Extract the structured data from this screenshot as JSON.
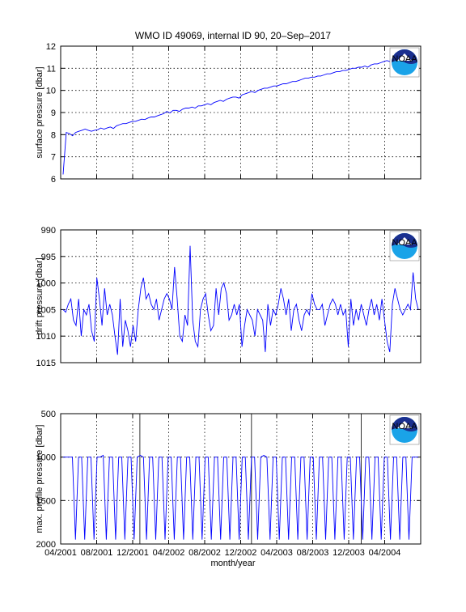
{
  "figure": {
    "title": "WMO ID 49069, internal ID 90, 20–Sep–2017",
    "xlabel": "month/year",
    "logo_text": "NOAA"
  },
  "colors": {
    "line": "#0000ff",
    "axes": "#000000",
    "grid": "#000000",
    "logo_blue": "#1a2f8f",
    "logo_cyan": "#1aa3e8"
  },
  "chart_data": [
    {
      "type": "line",
      "ylabel": "surface pressure [dbar]",
      "ylim": [
        6,
        12
      ],
      "yticks": [
        6,
        7,
        8,
        9,
        10,
        11,
        12
      ],
      "y_reversed": false,
      "grid": true,
      "x_tick_labels": [],
      "series": [
        {
          "values": [
            6.2,
            8.1,
            8.05,
            7.95,
            8.1,
            8.15,
            8.2,
            8.25,
            8.2,
            8.15,
            8.2,
            8.22,
            8.3,
            8.25,
            8.3,
            8.35,
            8.28,
            8.4,
            8.45,
            8.5,
            8.5,
            8.55,
            8.6,
            8.6,
            8.65,
            8.7,
            8.68,
            8.75,
            8.8,
            8.8,
            8.85,
            8.9,
            8.95,
            9.05,
            8.98,
            9.1,
            9.1,
            9.05,
            9.15,
            9.2,
            9.2,
            9.25,
            9.2,
            9.3,
            9.3,
            9.35,
            9.4,
            9.35,
            9.45,
            9.5,
            9.55,
            9.5,
            9.6,
            9.65,
            9.7,
            9.7,
            9.65,
            9.8,
            9.85,
            9.9,
            9.95,
            9.9,
            10.0,
            10.05,
            10.1,
            10.1,
            10.15,
            10.2,
            10.2,
            10.25,
            10.3,
            10.3,
            10.35,
            10.4,
            10.4,
            10.45,
            10.5,
            10.55,
            10.55,
            10.6,
            10.6,
            10.65,
            10.65,
            10.7,
            10.75,
            10.75,
            10.8,
            10.85,
            10.85,
            10.9,
            10.9,
            10.95,
            11.0,
            11.0,
            11.05,
            11.05,
            11.1,
            11.05,
            11.15,
            11.2,
            11.2,
            11.25,
            11.3,
            11.35,
            11.3,
            11.4,
            11.35,
            11.3,
            11.35,
            11.4,
            11.35,
            11.3,
            11.35,
            11.4
          ]
        }
      ]
    },
    {
      "type": "line",
      "ylabel": "drift pressure [dbar]",
      "ylim": [
        990,
        1015
      ],
      "yticks": [
        990,
        995,
        1000,
        1005,
        1010,
        1015
      ],
      "y_reversed": true,
      "grid": true,
      "x_tick_labels": [],
      "series": [
        {
          "values": [
            1005,
            1005.5,
            1004,
            1003,
            1007,
            1008,
            1003,
            1010,
            1005,
            1006,
            1004,
            1009,
            1011,
            999,
            1003,
            1008,
            1001,
            1006,
            1004,
            1006,
            1010,
            1013.5,
            1003,
            1012,
            1007,
            1009,
            1012,
            1008,
            1011,
            1005,
            1001,
            999,
            1003,
            1002,
            1004,
            1005,
            1003,
            1007,
            1005,
            1003,
            1002,
            1003,
            1005,
            997,
            1003,
            1010,
            1011,
            1006,
            1008,
            993,
            1007,
            1011,
            1012,
            1005,
            1003,
            1002,
            1006,
            1009,
            1008,
            1001,
            1006,
            1001,
            1000,
            1002,
            1007,
            1006,
            1004,
            1006,
            1004,
            1012,
            1008,
            1005,
            1006,
            1007,
            1010,
            1005,
            1006,
            1007,
            1013,
            1004,
            1008,
            1005,
            1006,
            1004,
            1001,
            1003,
            1006,
            1003,
            1009,
            1005,
            1004,
            1007,
            1009,
            1006,
            1005,
            1006,
            1002,
            1004,
            1005,
            1005,
            1004,
            1008,
            1006,
            1004,
            1003,
            1004,
            1006,
            1004,
            1006,
            1005,
            1012,
            1003,
            1008,
            1005,
            1007,
            1004,
            1006,
            1008,
            1005,
            1003,
            1006,
            1004,
            1007,
            1003,
            1007,
            1011,
            1013,
            1004,
            1001,
            1003,
            1005,
            1006,
            1005,
            1004,
            1005,
            998,
            1003,
            1005
          ]
        }
      ]
    },
    {
      "type": "line",
      "ylabel": "max. profile pressure [dbar]",
      "ylim": [
        500,
        2000
      ],
      "yticks": [
        500,
        1000,
        1500,
        2000
      ],
      "y_reversed": true,
      "grid": true,
      "x_tick_labels": [
        "04/2001",
        "08/2001",
        "12/2001",
        "04/2002",
        "08/2002",
        "12/2002",
        "04/2003",
        "08/2003",
        "12/2003",
        "04/2004"
      ],
      "series": [
        {
          "values": [
            1000,
            1000,
            1000,
            1000,
            1950,
            1000,
            1000,
            1950,
            1000,
            1000,
            1950,
            1000,
            1000,
            980,
            1950,
            1000,
            1000,
            1950,
            1000,
            1000,
            1950,
            1000,
            1000,
            1950,
            1000,
            980,
            1000,
            1950,
            1000,
            1000,
            1950,
            1000,
            1000,
            1950,
            1000,
            1000,
            1950,
            1000,
            1000,
            1950,
            1000,
            1000,
            1950,
            1000,
            1000,
            1950,
            1000,
            1000,
            1950,
            1000,
            1000,
            1950,
            1000,
            1000,
            1950,
            1000,
            1000,
            1950,
            1000,
            1000,
            1950,
            1000,
            1000,
            1950,
            1000,
            980,
            1000,
            1950,
            1000,
            1000,
            1950,
            1000,
            1000,
            1950,
            1000,
            1000,
            1950,
            1000,
            1000,
            1950,
            1000,
            1000,
            1950,
            1000,
            1000,
            1950,
            1000,
            1000,
            1950,
            1000,
            1000,
            1950,
            1000,
            1000,
            1950,
            1000,
            1000,
            1950,
            1000,
            1000,
            1950,
            1000,
            1000,
            1950,
            1000,
            1000,
            1950,
            1000,
            1000,
            1950,
            1000,
            1000,
            1950,
            1000,
            1000,
            1000
          ]
        }
      ]
    }
  ]
}
